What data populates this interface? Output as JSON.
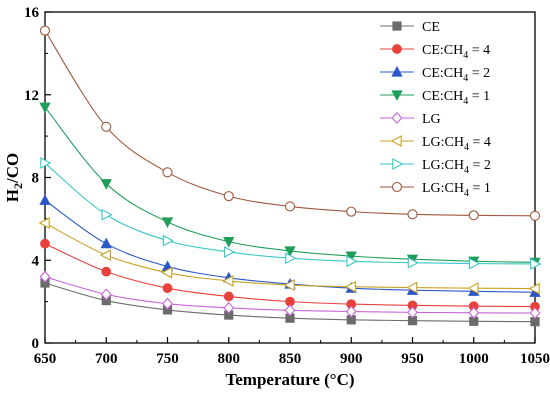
{
  "chart_data": {
    "type": "line",
    "xlabel": "Temperature (°C)",
    "ylabel_main": "H",
    "ylabel_sub": "2",
    "ylabel_tail": "/CO",
    "xlim": [
      650,
      1050
    ],
    "ylim": [
      0,
      16
    ],
    "x_ticks": [
      "650",
      "700",
      "750",
      "800",
      "850",
      "900",
      "950",
      "1000",
      "1050"
    ],
    "y_ticks": [
      "0",
      "4",
      "8",
      "12",
      "16"
    ],
    "grid": false,
    "legend_position": "top-right",
    "x": [
      650,
      700,
      750,
      800,
      850,
      900,
      950,
      1000,
      1050
    ],
    "series": [
      {
        "name": "CE",
        "name_main": "CE",
        "name_sub": "",
        "name_tail": "",
        "marker": "square",
        "color": "#6b6b6b",
        "values": [
          2.9,
          2.05,
          1.6,
          1.35,
          1.2,
          1.12,
          1.08,
          1.05,
          1.03
        ]
      },
      {
        "name": "CE:CH4 = 4",
        "name_main": "CE:CH",
        "name_sub": "4",
        "name_tail": " = 4",
        "marker": "circle",
        "color": "#e8413c",
        "values": [
          4.8,
          3.45,
          2.65,
          2.25,
          2.0,
          1.88,
          1.82,
          1.78,
          1.76
        ]
      },
      {
        "name": "CE:CH4 = 2",
        "name_main": "CE:CH",
        "name_sub": "4",
        "name_tail": " = 2",
        "marker": "triangle-up",
        "color": "#2a58c8",
        "values": [
          6.9,
          4.8,
          3.7,
          3.15,
          2.85,
          2.65,
          2.55,
          2.5,
          2.45
        ]
      },
      {
        "name": "CE:CH4 = 1",
        "name_main": "CE:CH",
        "name_sub": "4",
        "name_tail": " = 1",
        "marker": "triangle-down",
        "color": "#1f9e5a",
        "values": [
          11.4,
          7.7,
          5.85,
          4.9,
          4.45,
          4.2,
          4.05,
          3.95,
          3.9
        ]
      },
      {
        "name": "LG",
        "name_main": "LG",
        "name_sub": "",
        "name_tail": "",
        "marker": "diamond-open",
        "color": "#c764d8",
        "values": [
          3.2,
          2.35,
          1.9,
          1.7,
          1.58,
          1.52,
          1.48,
          1.46,
          1.45
        ]
      },
      {
        "name": "LG:CH4 = 4",
        "name_main": "LG:CH",
        "name_sub": "4",
        "name_tail": " = 4",
        "marker": "triangle-left-open",
        "color": "#c9a227",
        "values": [
          5.8,
          4.25,
          3.4,
          3.0,
          2.8,
          2.72,
          2.68,
          2.65,
          2.63
        ]
      },
      {
        "name": "LG:CH4 = 2",
        "name_main": "LG:CH",
        "name_sub": "4",
        "name_tail": " = 2",
        "marker": "triangle-right-open",
        "color": "#3ac6c6",
        "values": [
          8.7,
          6.2,
          4.95,
          4.4,
          4.1,
          3.95,
          3.88,
          3.84,
          3.82
        ]
      },
      {
        "name": "LG:CH4 = 1",
        "name_main": "LG:CH",
        "name_sub": "4",
        "name_tail": " = 1",
        "marker": "circle-open",
        "color": "#a0563c",
        "values": [
          15.1,
          10.45,
          8.25,
          7.1,
          6.6,
          6.35,
          6.22,
          6.17,
          6.15
        ]
      }
    ]
  }
}
